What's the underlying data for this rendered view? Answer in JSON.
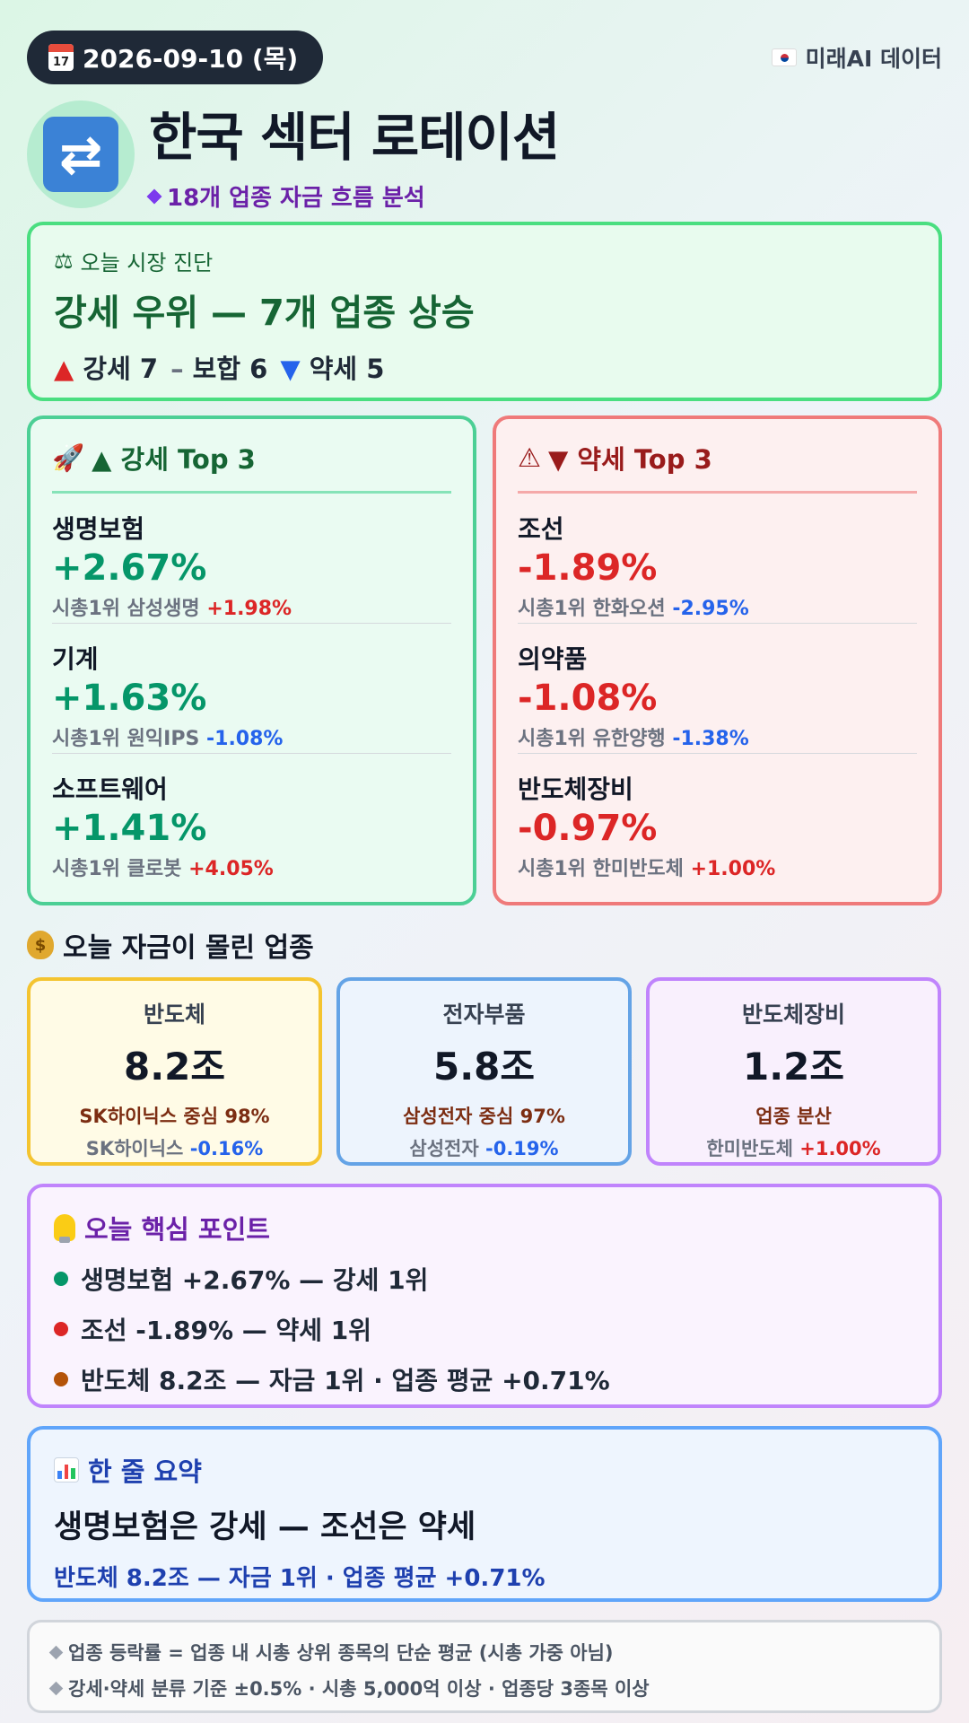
{
  "header": {
    "date": "2026-09-10 (목)",
    "calendar_icon_text": "17",
    "source": "미래AI 데이터",
    "title": "한국 섹터 로테이션",
    "subtitle": "18개 업종 자금 흐름 분석"
  },
  "diagnosis": {
    "label": "오늘 시장 진단",
    "headline": "강세 우위 — 7개 업종 상승",
    "strong_label": "강세 7",
    "neutral_label": "보합 6",
    "weak_label": "약세 5"
  },
  "strong_top3": {
    "title": "▲ 강세 Top 3",
    "items": [
      {
        "sector": "생명보험",
        "change": "+2.67%",
        "leader_prefix": "시총1위 삼성생명",
        "leader_change": "+1.98%"
      },
      {
        "sector": "기계",
        "change": "+1.63%",
        "leader_prefix": "시총1위 원익IPS",
        "leader_change": "-1.08%"
      },
      {
        "sector": "소프트웨어",
        "change": "+1.41%",
        "leader_prefix": "시총1위 클로봇",
        "leader_change": "+4.05%"
      }
    ]
  },
  "weak_top3": {
    "title": "▼ 약세 Top 3",
    "items": [
      {
        "sector": "조선",
        "change": "-1.89%",
        "leader_prefix": "시총1위 한화오션",
        "leader_change": "-2.95%"
      },
      {
        "sector": "의약품",
        "change": "-1.08%",
        "leader_prefix": "시총1위 유한양행",
        "leader_change": "-1.38%"
      },
      {
        "sector": "반도체장비",
        "change": "-0.97%",
        "leader_prefix": "시총1위 한미반도체",
        "leader_change": "+1.00%"
      }
    ]
  },
  "flow": {
    "title": "오늘 자금이 몰린 업종",
    "cards": [
      {
        "sector": "반도체",
        "amount": "8.2조",
        "note": "SK하이닉스 중심 98%",
        "leader": "SK하이닉스",
        "leader_change": "-0.16%"
      },
      {
        "sector": "전자부품",
        "amount": "5.8조",
        "note": "삼성전자 중심 97%",
        "leader": "삼성전자",
        "leader_change": "-0.19%"
      },
      {
        "sector": "반도체장비",
        "amount": "1.2조",
        "note": "업종 분산",
        "leader": "한미반도체",
        "leader_change": "+1.00%"
      }
    ]
  },
  "key_points": {
    "title": "오늘 핵심 포인트",
    "items": [
      {
        "text": "생명보험 +2.67% — 강세 1위",
        "color": "#059669"
      },
      {
        "text": "조선 -1.89% — 약세 1위",
        "color": "#dc2626"
      },
      {
        "text": "반도체 8.2조 — 자금 1위 · 업종 평균 +0.71%",
        "color": "#b45309"
      }
    ]
  },
  "summary": {
    "title": "한 줄 요약",
    "headline": "생명보험은 강세 — 조선은 약세",
    "sub": "반도체 8.2조 — 자금 1위 · 업종 평균 +0.71%"
  },
  "footnotes": [
    "업종 등락률 = 업종 내 시총 상위 종목의 단순 평균 (시총 가중 아님)",
    "강세·약세 분류 기준 ±0.5% · 시총 5,000억 이상 · 업종당 3종목 이상"
  ],
  "colors": {
    "strong": "#059669",
    "weak": "#dc2626",
    "positive": "#dc2626",
    "negative": "#2563eb"
  }
}
